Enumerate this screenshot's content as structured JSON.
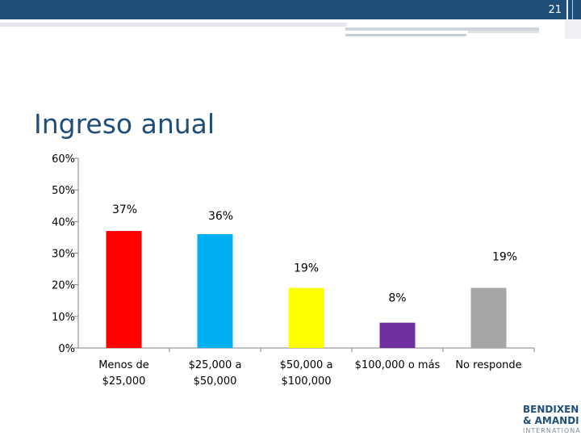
{
  "page": {
    "number": "21",
    "title": "Ingreso anual"
  },
  "logo": {
    "line1": "BENDIXEN",
    "line2": "& AMANDI",
    "line3": "INTERNATIONAL"
  },
  "colors": {
    "topbar": "#1f4e79",
    "title": "#1f4e79",
    "axis": "#808080",
    "text": "#000000"
  },
  "chart_data": {
    "type": "bar",
    "title": "",
    "xlabel": "",
    "ylabel": "",
    "ylim": [
      0,
      60
    ],
    "yticks": [
      0,
      10,
      20,
      30,
      40,
      50,
      60
    ],
    "ytick_labels": [
      "0%",
      "10%",
      "20%",
      "30%",
      "40%",
      "50%",
      "60%"
    ],
    "grid": false,
    "legend": "none",
    "categories": [
      [
        "Menos de",
        "$25,000"
      ],
      [
        "$25,000 a",
        "$50,000"
      ],
      [
        "$50,000 a",
        "$100,000"
      ],
      [
        "$100,000 o más"
      ],
      [
        "No responde"
      ]
    ],
    "values": [
      37,
      36,
      19,
      8,
      19
    ],
    "data_labels": [
      "37%",
      "36%",
      "19%",
      "8%",
      "19%"
    ],
    "bar_colors": [
      "#ff0000",
      "#00b0f0",
      "#ffff00",
      "#7030a0",
      "#a6a6a6"
    ]
  }
}
